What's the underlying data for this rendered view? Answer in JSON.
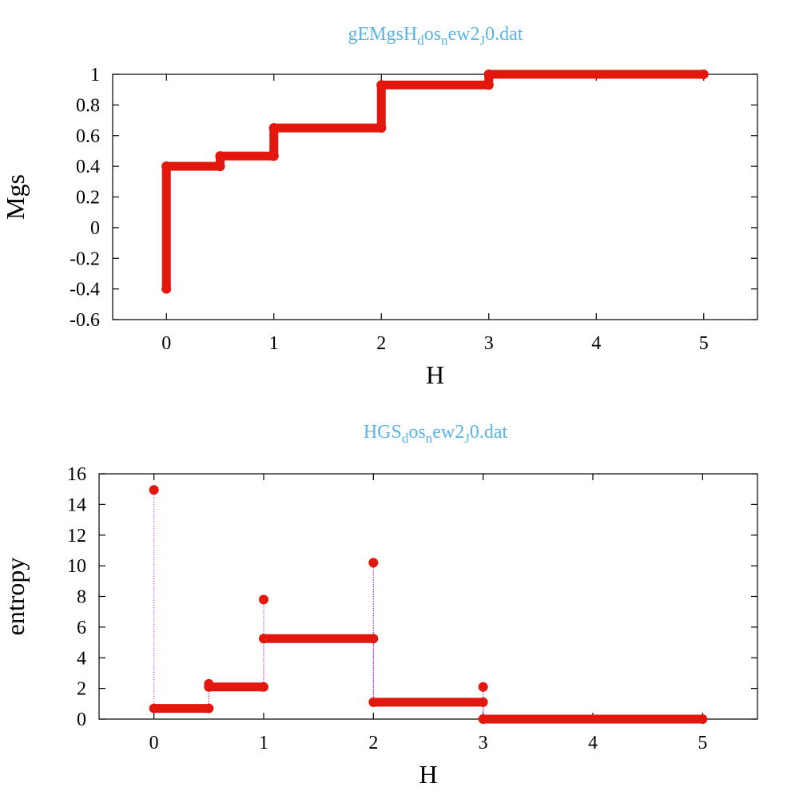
{
  "chart_data": [
    {
      "type": "scatter",
      "title": "gEMgsH",
      "title_parts": [
        {
          "text": "gEMgsH",
          "sub": false
        },
        {
          "text": "d",
          "sub": true
        },
        {
          "text": "os",
          "sub": false
        },
        {
          "text": "n",
          "sub": true
        },
        {
          "text": "ew2",
          "sub": false
        },
        {
          "text": "J",
          "sub": true
        },
        {
          "text": "0.dat",
          "sub": false
        }
      ],
      "xlabel": "H",
      "ylabel": "Mgs",
      "xlim": [
        -0.5,
        5.5
      ],
      "ylim": [
        -0.6,
        1.0
      ],
      "xticks": [
        0,
        1,
        2,
        3,
        4,
        5
      ],
      "xtick_labels": [
        "0",
        "1",
        "2",
        "3",
        "4",
        "5"
      ],
      "yticks": [
        -0.6,
        -0.4,
        -0.2,
        0,
        0.2,
        0.4,
        0.6,
        0.8,
        1
      ],
      "ytick_labels": [
        "-0.6",
        "-0.4",
        "-0.2",
        "0",
        "0.2",
        "0.4",
        "0.6",
        "0.8",
        "1"
      ],
      "grid": false,
      "legend": "none",
      "series": [
        {
          "color": "#e3170d",
          "connector_color": "#9400d3",
          "segments": [
            {
              "x": [
                0,
                0
              ],
              "y": [
                -0.4,
                0.4
              ]
            },
            {
              "x": [
                0,
                0.5
              ],
              "y": [
                0.4,
                0.4
              ]
            },
            {
              "x": [
                0.5,
                0.5
              ],
              "y": [
                0.4,
                0.467
              ]
            },
            {
              "x": [
                0.5,
                1
              ],
              "y": [
                0.467,
                0.467
              ]
            },
            {
              "x": [
                1,
                1
              ],
              "y": [
                0.467,
                0.65
              ]
            },
            {
              "x": [
                1,
                2
              ],
              "y": [
                0.65,
                0.65
              ]
            },
            {
              "x": [
                2,
                2
              ],
              "y": [
                0.65,
                0.93
              ]
            },
            {
              "x": [
                2,
                3
              ],
              "y": [
                0.93,
                0.93
              ]
            },
            {
              "x": [
                3,
                3
              ],
              "y": [
                0.93,
                1.0
              ]
            },
            {
              "x": [
                3,
                5
              ],
              "y": [
                1.0,
                1.0
              ]
            }
          ]
        }
      ]
    },
    {
      "type": "scatter",
      "title": "HGS",
      "title_parts": [
        {
          "text": "HGS",
          "sub": false
        },
        {
          "text": "d",
          "sub": true
        },
        {
          "text": "os",
          "sub": false
        },
        {
          "text": "n",
          "sub": true
        },
        {
          "text": "ew2",
          "sub": false
        },
        {
          "text": "J",
          "sub": true
        },
        {
          "text": "0.dat",
          "sub": false
        }
      ],
      "xlabel": "H",
      "ylabel": "entropy",
      "xlim": [
        -0.5,
        5.5
      ],
      "ylim": [
        0,
        16
      ],
      "xticks": [
        0,
        1,
        2,
        3,
        4,
        5
      ],
      "xtick_labels": [
        "0",
        "1",
        "2",
        "3",
        "4",
        "5"
      ],
      "yticks": [
        0,
        2,
        4,
        6,
        8,
        10,
        12,
        14,
        16
      ],
      "ytick_labels": [
        "0",
        "2",
        "4",
        "6",
        "8",
        "10",
        "12",
        "14",
        "16"
      ],
      "grid": false,
      "legend": "none",
      "series": [
        {
          "color": "#e3170d",
          "connector_color": "#9400d3",
          "segments": [
            {
              "x": [
                0,
                0.5
              ],
              "y": [
                0.7,
                0.7
              ]
            },
            {
              "x": [
                0.5,
                1
              ],
              "y": [
                2.1,
                2.1
              ]
            },
            {
              "x": [
                1,
                2
              ],
              "y": [
                5.25,
                5.25
              ]
            },
            {
              "x": [
                2,
                3
              ],
              "y": [
                1.1,
                1.1
              ]
            },
            {
              "x": [
                3,
                5
              ],
              "y": [
                0.0,
                0.0
              ]
            }
          ],
          "points": [
            {
              "x": 0,
              "y": 14.95
            },
            {
              "x": 0.5,
              "y": 2.3
            },
            {
              "x": 1,
              "y": 7.8
            },
            {
              "x": 2,
              "y": 10.2
            },
            {
              "x": 3,
              "y": 2.1
            }
          ]
        }
      ]
    }
  ]
}
